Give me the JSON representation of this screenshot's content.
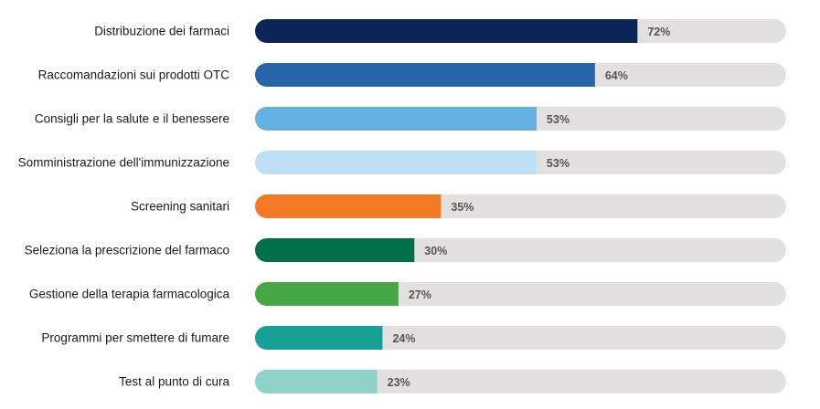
{
  "chart_data": {
    "type": "bar",
    "orientation": "horizontal",
    "categories": [
      "Distribuzione dei farmaci",
      "Raccomandazioni sui prodotti OTC",
      "Consigli per la salute e il benessere",
      "Somministrazione dell'immunizzazione",
      "Screening sanitari",
      "Seleziona la prescrizione del farmaco",
      "Gestione della terapia farmacologica",
      "Programmi per smettere di fumare",
      "Test al punto di cura"
    ],
    "values": [
      72,
      64,
      53,
      53,
      35,
      30,
      27,
      24,
      23
    ],
    "value_labels": [
      "72%",
      "64%",
      "53%",
      "53%",
      "35%",
      "30%",
      "27%",
      "24%",
      "23%"
    ],
    "bar_colors": [
      "#0b2559",
      "#2666a8",
      "#64b2e3",
      "#bde0f6",
      "#f27a24",
      "#00704a",
      "#45a845",
      "#17a196",
      "#8fd3c8"
    ],
    "track_color": "#e2e1df",
    "xlim": [
      0,
      100
    ],
    "title": "",
    "xlabel": "",
    "ylabel": "",
    "grid": false,
    "legend": "none"
  }
}
